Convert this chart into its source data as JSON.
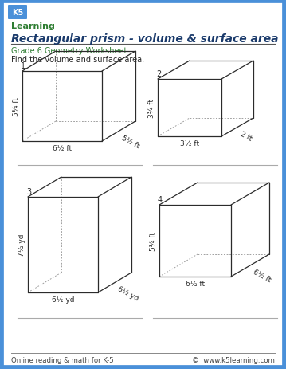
{
  "title": "Rectangular prism - volume & surface area",
  "subtitle": "Grade 6 Geometry Worksheet",
  "instruction": "Find the volume and surface area.",
  "footer_left": "Online reading & math for K-5",
  "footer_right": "©  www.k5learning.com",
  "border_color": "#4a90d9",
  "title_color": "#1a3a6b",
  "subtitle_color": "#2e7d32",
  "text_color": "#222222",
  "bg_color": "#ffffff",
  "prisms": [
    {
      "num": "1.",
      "label_h": "5¾ ft",
      "label_w": "6½ ft",
      "label_d": "5½ ft"
    },
    {
      "num": "2.",
      "label_h": "3¾ ft",
      "label_w": "3½ ft",
      "label_d": "2 ft"
    },
    {
      "num": "3.",
      "label_h": "7½ yd",
      "label_w": "6½ yd",
      "label_d": "6½ yd"
    },
    {
      "num": "4.",
      "label_h": "5¾ ft",
      "label_w": "6½ ft",
      "label_d": "6½ ft"
    }
  ]
}
